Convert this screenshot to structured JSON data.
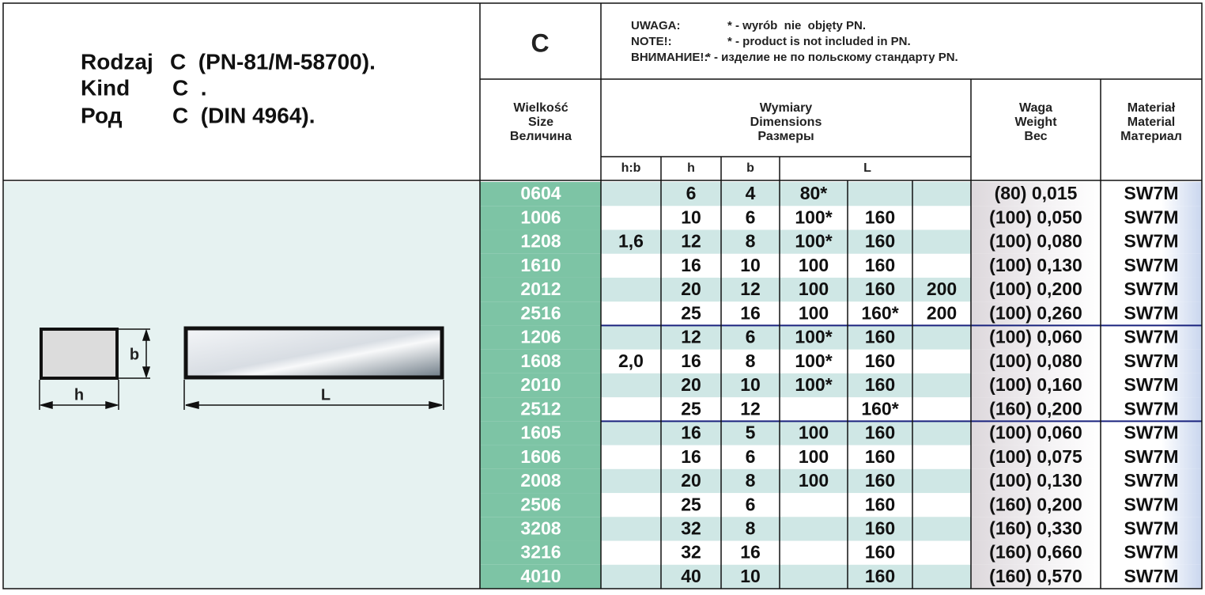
{
  "header": {
    "title": [
      {
        "label": "Rodzaj",
        "text": "C  (PN-81/M-58700)."
      },
      {
        "label": "Kind",
        "text": "C  ."
      },
      {
        "label": "Род",
        "text": "C  (DIN 4964)."
      }
    ],
    "code": "C",
    "notes": [
      {
        "label": "UWAGA:",
        "text": "* - wyrób  nie  objęty PN."
      },
      {
        "label": "NOTE!:",
        "text": "* - product is not included in PN."
      },
      {
        "label": "ВНИМАНИЕ!:",
        "text": "* - изделие не по польскому стандарту PN."
      }
    ]
  },
  "table": {
    "columns": {
      "size": [
        "Wielkość",
        "Size",
        "Величина"
      ],
      "dimensions": [
        "Wymiary",
        "Dimensions",
        "Размеры"
      ],
      "weight": [
        "Waga",
        "Weight",
        "Вес"
      ],
      "material": [
        "Materiał",
        "Material",
        "Материал"
      ],
      "sub": [
        "h:b",
        "h",
        "b",
        "L"
      ]
    },
    "rows": [
      [
        "0604",
        null,
        6,
        4,
        "80*",
        null,
        null,
        "(80) 0,015",
        "SW7M"
      ],
      [
        "1006",
        null,
        10,
        6,
        "100*",
        "160",
        null,
        "(100) 0,050",
        "SW7M"
      ],
      [
        "1208",
        "1,6",
        12,
        8,
        "100*",
        "160",
        null,
        "(100) 0,080",
        "SW7M"
      ],
      [
        "1610",
        null,
        16,
        10,
        "100",
        "160",
        null,
        "(100) 0,130",
        "SW7M"
      ],
      [
        "2012",
        null,
        20,
        12,
        "100",
        "160",
        "200",
        "(100) 0,200",
        "SW7M"
      ],
      [
        "2516",
        null,
        25,
        16,
        "100",
        "160*",
        "200",
        "(100) 0,260",
        "SW7M"
      ],
      [
        "1206",
        null,
        12,
        6,
        "100*",
        "160",
        null,
        "(100) 0,060",
        "SW7M"
      ],
      [
        "1608",
        "2,0",
        16,
        8,
        "100*",
        "160",
        null,
        "(100) 0,080",
        "SW7M"
      ],
      [
        "2010",
        null,
        20,
        10,
        "100*",
        "160",
        null,
        "(100) 0,160",
        "SW7M"
      ],
      [
        "2512",
        null,
        25,
        12,
        null,
        "160*",
        null,
        "(160) 0,200",
        "SW7M"
      ],
      [
        "1605",
        null,
        16,
        5,
        "100",
        "160",
        null,
        "(100) 0,060",
        "SW7M"
      ],
      [
        "1606",
        null,
        16,
        6,
        "100",
        "160",
        null,
        "(100) 0,075",
        "SW7M"
      ],
      [
        "2008",
        null,
        20,
        8,
        "100",
        "160",
        null,
        "(100) 0,130",
        "SW7M"
      ],
      [
        "2506",
        null,
        25,
        6,
        null,
        "160",
        null,
        "(160) 0,200",
        "SW7M"
      ],
      [
        "3208",
        null,
        32,
        8,
        null,
        "160",
        null,
        "(160) 0,330",
        "SW7M"
      ],
      [
        "3216",
        null,
        32,
        16,
        null,
        "160",
        null,
        "(160) 0,660",
        "SW7M"
      ],
      [
        "4010",
        null,
        40,
        10,
        null,
        "160",
        null,
        "(160) 0,570",
        "SW7M"
      ]
    ]
  },
  "drawing": {
    "b": "b",
    "h": "h",
    "L": "L"
  }
}
